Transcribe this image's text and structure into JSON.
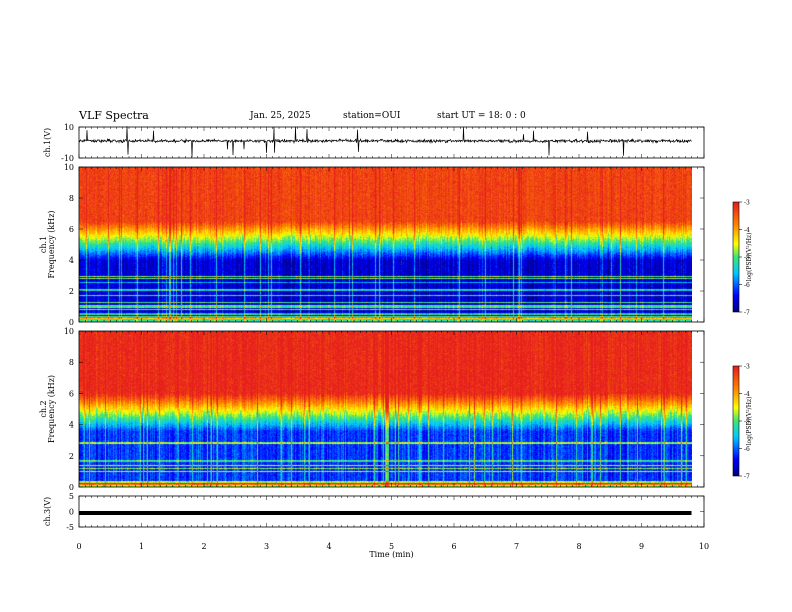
{
  "header": {
    "title": "VLF Spectra",
    "date": "Jan. 25, 2025",
    "station": "station=OUI",
    "start": "start  UT =   18: 0  : 0"
  },
  "colorbar_label": "log(PSD)(V²/Hz)",
  "chart_data": [
    {
      "type": "line",
      "ylabel": "ch.1(V)",
      "ylim": [
        -10,
        10
      ],
      "yticks": [
        "10",
        "-10"
      ],
      "xlim": [
        0,
        10
      ],
      "x_end": 9.8,
      "grid": false,
      "description_values": {
        "baseline": 1,
        "noise_amplitude": 1.5
      }
    },
    {
      "type": "heatmap",
      "ylabel": "ch.1\nFrequency (kHz)",
      "ylim": [
        0,
        10
      ],
      "yticks": [
        "0",
        "2",
        "4",
        "6",
        "8",
        "10"
      ],
      "xlim": [
        0,
        10
      ],
      "x_end": 9.8,
      "colorbar": {
        "min": -7,
        "max": -3,
        "ticks": [
          "-3",
          "-4",
          "-5",
          "-6",
          "-7"
        ],
        "label": "log(PSD)(V²/Hz)"
      },
      "profile": {
        "low_band_top_kHz": 4.0,
        "transition_kHz": 5.5,
        "high_band_level": -3.3,
        "low_band_level": -6.6
      }
    },
    {
      "type": "heatmap",
      "ylabel": "ch.2\nFrequency (kHz)",
      "ylim": [
        0,
        10
      ],
      "yticks": [
        "0",
        "2",
        "4",
        "6",
        "8",
        "10"
      ],
      "xlim": [
        0,
        10
      ],
      "x_end": 9.8,
      "colorbar": {
        "min": -7,
        "max": -3,
        "ticks": [
          "-3",
          "-4",
          "-5",
          "-6",
          "-7"
        ],
        "label": "log(PSD)(V²/Hz)"
      },
      "profile": {
        "low_band_top_kHz": 3.6,
        "transition_kHz": 5.0,
        "high_band_level": -3.1,
        "low_band_level": -6.2
      }
    },
    {
      "type": "line",
      "ylabel": "ch.3(V)",
      "ylim": [
        -5,
        5
      ],
      "yticks": [
        "5",
        "0",
        "-5"
      ],
      "xlim": [
        0,
        10
      ],
      "x_end": 9.8,
      "values_constant": -0.5
    }
  ],
  "xaxis": {
    "label": "Time (min)",
    "ticks": [
      "0",
      "1",
      "2",
      "3",
      "4",
      "5",
      "6",
      "7",
      "8",
      "9",
      "10"
    ]
  }
}
